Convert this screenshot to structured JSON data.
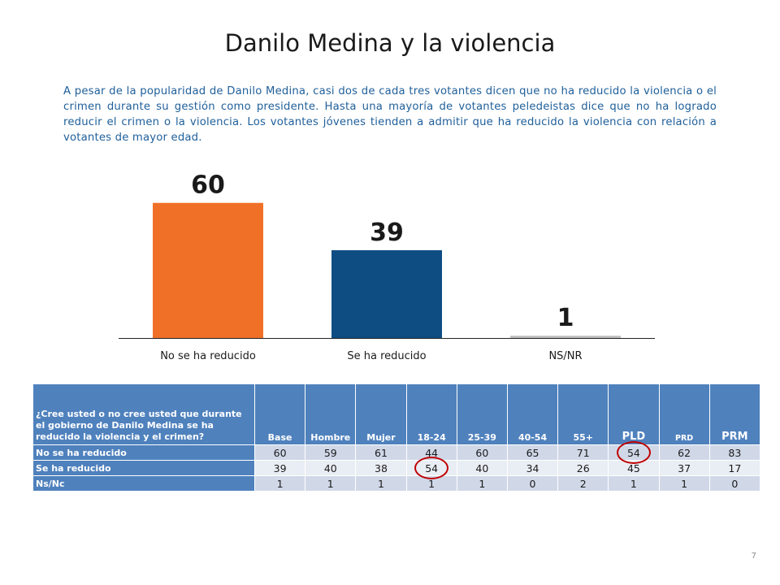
{
  "title": "Danilo Medina y la violencia",
  "description": "A pesar de la popularidad de Danilo Medina, casi dos de cada tres votantes dicen que no ha reducido la violencia o el crimen durante su gestión como presidente. Hasta una mayoría de votantes peledeistas dice que no ha logrado reducir el crimen o la violencia. Los votantes jóvenes tienden a admitir que ha reducido la violencia con relación a votantes de mayor edad.",
  "chart_data": {
    "type": "bar",
    "categories": [
      "No se ha reducido",
      "Se ha reducido",
      "NS/NR"
    ],
    "values": [
      60,
      39,
      1
    ],
    "colors": [
      "#f07027",
      "#0e4d82",
      "#bfbfbf"
    ],
    "data_labels": [
      "60",
      "39",
      "1"
    ],
    "title": "",
    "xlabel": "",
    "ylabel": "",
    "ylim": [
      0,
      70
    ],
    "grid": false
  },
  "table": {
    "question": "¿Cree usted o no cree usted que durante el gobierno de Danilo Medina se ha reducido la violencia y el crimen?",
    "columns": [
      "Base",
      "Hombre",
      "Mujer",
      "18-24",
      "25-39",
      "40-54",
      "55+",
      "PLD",
      "PRD",
      "PRM"
    ],
    "rows": [
      {
        "label": "No se ha reducido",
        "values": [
          "60",
          "59",
          "61",
          "44",
          "60",
          "65",
          "71",
          "54",
          "62",
          "83"
        ]
      },
      {
        "label": "Se ha reducido",
        "values": [
          "39",
          "40",
          "38",
          "54",
          "40",
          "34",
          "26",
          "45",
          "37",
          "17"
        ]
      },
      {
        "label": "Ns/Nc",
        "values": [
          "1",
          "1",
          "1",
          "1",
          "1",
          "0",
          "2",
          "1",
          "1",
          "0"
        ]
      }
    ],
    "highlight_color": "#c00000",
    "highlighted_cells": [
      "Se ha reducido / 18-24",
      "No se ha reducido / PLD"
    ]
  },
  "page_number": "7"
}
